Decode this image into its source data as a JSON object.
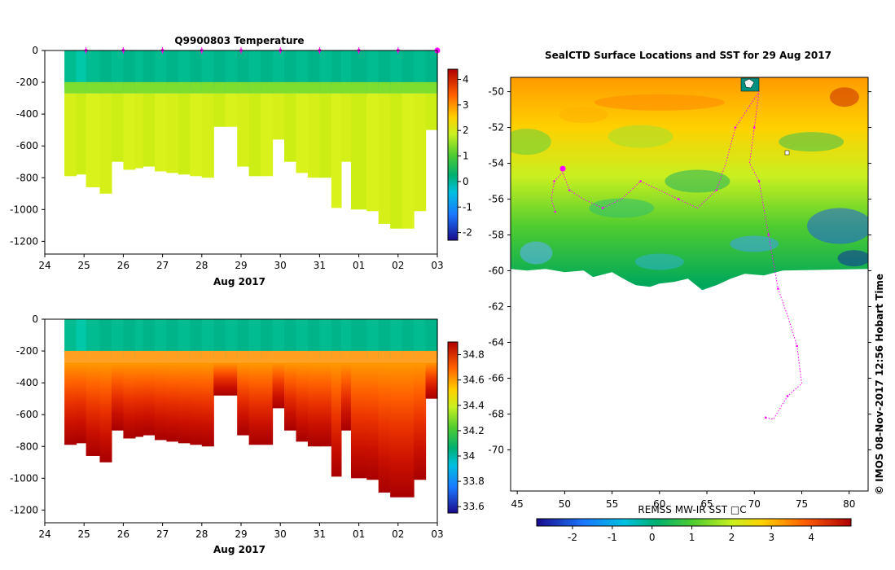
{
  "chart_data": [
    {
      "id": "temperature",
      "type": "heatmap",
      "title": "Q9900803  Temperature",
      "x_ticks": [
        "24",
        "25",
        "26",
        "27",
        "28",
        "29",
        "30",
        "31",
        "01",
        "02",
        "03"
      ],
      "xlabel": "Aug 2017",
      "y_ticks": [
        "0",
        "-200",
        "-400",
        "-600",
        "-800",
        "-1000",
        "-1200"
      ],
      "xlim": [
        24,
        34
      ],
      "ylim": [
        -1280,
        0
      ],
      "profile_days": [
        24.5,
        24.8,
        25.05,
        25.4,
        25.7,
        26.0,
        26.3,
        26.5,
        26.8,
        27.1,
        27.4,
        27.7,
        28.0,
        28.3,
        28.6,
        28.9,
        29.2,
        29.5,
        29.8,
        30.1,
        30.4,
        30.7,
        31.0,
        31.3,
        31.55,
        31.8,
        32.2,
        32.5,
        32.8,
        33.1,
        33.4,
        33.7
      ],
      "profile_max_depth": [
        790,
        780,
        860,
        900,
        700,
        750,
        740,
        730,
        760,
        770,
        780,
        790,
        800,
        480,
        480,
        730,
        790,
        790,
        560,
        700,
        770,
        800,
        800,
        990,
        700,
        1000,
        1010,
        1090,
        1120,
        1120,
        1010,
        500
      ],
      "colorbar": {
        "ticks": [
          "4",
          "3",
          "2",
          "1",
          "0",
          "-1",
          "-2"
        ],
        "range": [
          -2.3,
          4.4
        ]
      },
      "markers": [
        25.05,
        26.0,
        27.0,
        28.0,
        29.0,
        30.0,
        31.0,
        32.0,
        33.0,
        34.0
      ],
      "surface_layer_depth": 240
    },
    {
      "id": "salinity",
      "type": "heatmap",
      "title": "",
      "x_ticks": [
        "24",
        "25",
        "26",
        "27",
        "28",
        "29",
        "30",
        "31",
        "01",
        "02",
        "03"
      ],
      "xlabel": "Aug 2017",
      "y_ticks": [
        "0",
        "-200",
        "-400",
        "-600",
        "-800",
        "-1000",
        "-1200"
      ],
      "xlim": [
        24,
        34
      ],
      "ylim": [
        -1280,
        0
      ],
      "colorbar": {
        "ticks": [
          "34.8",
          "34.6",
          "34.4",
          "34.2",
          "34",
          "33.8",
          "33.6"
        ],
        "range": [
          33.55,
          34.9
        ]
      }
    },
    {
      "id": "sst_map",
      "type": "heatmap",
      "title": "SealCTD Surface Locations and SST for 29 Aug 2017",
      "x_ticks": [
        "45",
        "50",
        "55",
        "60",
        "65",
        "70",
        "75",
        "80"
      ],
      "y_ticks": [
        "-50",
        "-52",
        "-54",
        "-56",
        "-58",
        "-60",
        "-62",
        "-64",
        "-66",
        "-68",
        "-70"
      ],
      "xlim": [
        44.3,
        82
      ],
      "ylim": [
        -72.3,
        -49.2
      ],
      "colorbar": {
        "label": "REMSS MW-IR SST □C",
        "ticks": [
          "-2",
          "-1",
          "0",
          "1",
          "2",
          "3",
          "4"
        ],
        "range": [
          -2.9,
          5.0
        ]
      },
      "credit": "© IMOS 08-Nov-2017 12:56 Hobart Time",
      "ice_edge_lat": -59.9,
      "track": [
        [
          71.2,
          -68.2
        ],
        [
          72,
          -68.3
        ],
        [
          73.5,
          -67
        ],
        [
          75,
          -66.3
        ],
        [
          74.5,
          -64.2
        ],
        [
          73.5,
          -62.5
        ],
        [
          72.5,
          -61
        ],
        [
          72,
          -59.5
        ],
        [
          71.5,
          -58
        ],
        [
          71,
          -56.5
        ],
        [
          70.5,
          -55
        ],
        [
          69.5,
          -54
        ],
        [
          70,
          -52
        ],
        [
          70.5,
          -50
        ],
        [
          68,
          -52
        ],
        [
          67,
          -54
        ],
        [
          66,
          -55.5
        ],
        [
          64,
          -56.5
        ],
        [
          62,
          -56
        ],
        [
          60,
          -55.5
        ],
        [
          58,
          -55
        ],
        [
          56,
          -56
        ],
        [
          54,
          -56.5
        ],
        [
          52,
          -56
        ],
        [
          50.5,
          -55.5
        ],
        [
          49.8,
          -54.5
        ],
        [
          48.9,
          -55
        ],
        [
          48.6,
          -56
        ],
        [
          49,
          -56.7
        ]
      ],
      "current_position": [
        49.8,
        -54.3
      ]
    }
  ]
}
